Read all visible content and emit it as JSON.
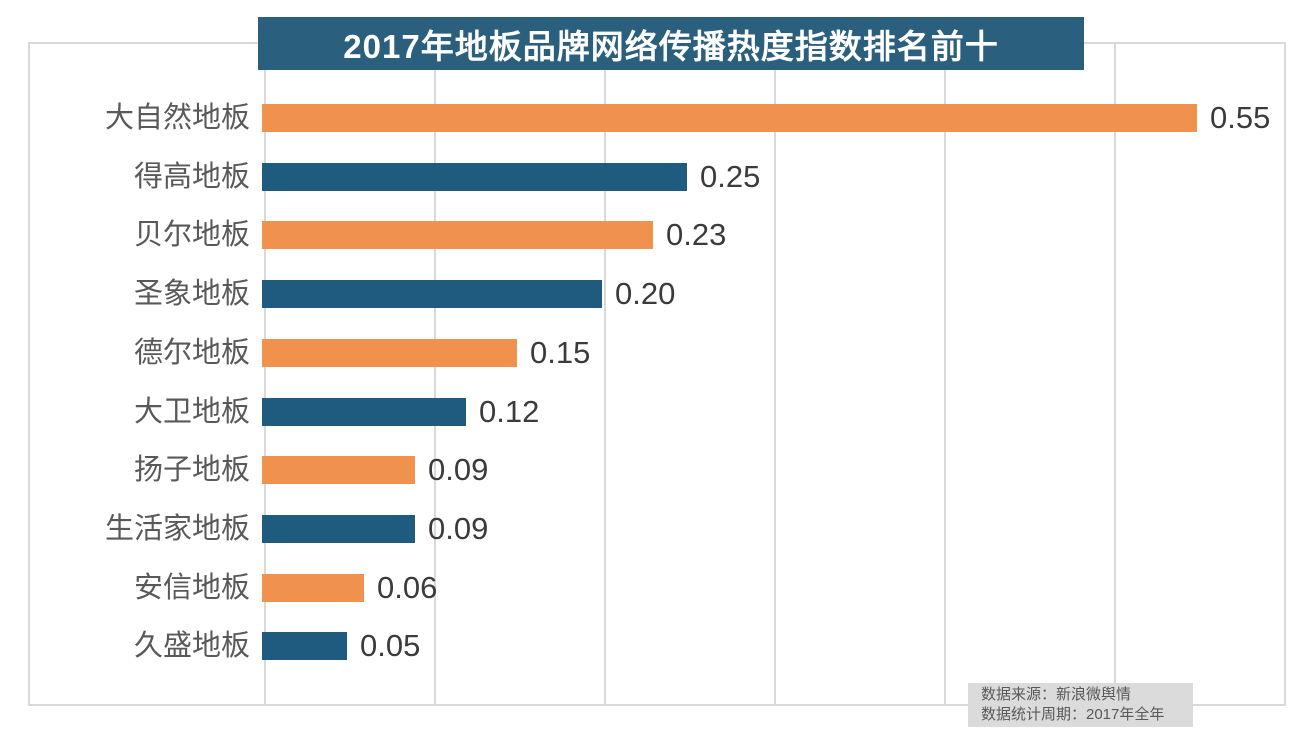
{
  "title": "2017年地板品牌网络传播热度指数排名前十",
  "chart_data": {
    "type": "bar",
    "orientation": "horizontal",
    "title": "2017年地板品牌网络传播热度指数排名前十",
    "categories": [
      "大自然地板",
      "得高地板",
      "贝尔地板",
      "圣象地板",
      "德尔地板",
      "大卫地板",
      "扬子地板",
      "生活家地板",
      "安信地板",
      "久盛地板"
    ],
    "values": [
      0.55,
      0.25,
      0.23,
      0.2,
      0.15,
      0.12,
      0.09,
      0.09,
      0.06,
      0.05
    ],
    "value_labels": [
      "0.55",
      "0.25",
      "0.23",
      "0.20",
      "0.15",
      "0.12",
      "0.09",
      "0.09",
      "0.06",
      "0.05"
    ],
    "xlabel": "",
    "ylabel": "",
    "xlim": [
      0,
      0.6
    ],
    "gridline_interval": 0.1,
    "grid": "vertical gridlines only, no axis tick labels",
    "legend": "none",
    "bar_color_pattern": "alternating orange/blue starting with orange"
  },
  "footer": {
    "source": "数据来源：新浪微舆情",
    "period": "数据统计周期：2017年全年"
  },
  "colors": {
    "title_banner_bg": "#2B5F7E",
    "title_text": "#FFFFFF",
    "orange_bar": "#F0914E",
    "blue_bar": "#1F5B7E",
    "category_label": "#595959",
    "value_label": "#3B3B3B",
    "gridline": "#D9D9D9",
    "frame_border": "#D9D9D9",
    "source_box_bg": "#DBDBDB",
    "source_text": "#595959"
  }
}
